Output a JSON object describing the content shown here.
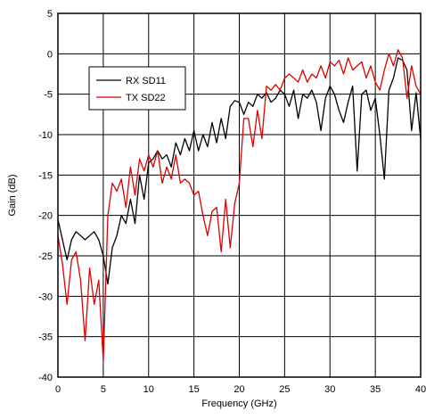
{
  "chart_data": {
    "type": "line",
    "xlabel": "Frequency (GHz)",
    "ylabel": "Gain (dB)",
    "xlim": [
      0,
      40
    ],
    "ylim": [
      -40,
      5
    ],
    "xticks": [
      0,
      5,
      10,
      15,
      20,
      25,
      30,
      35,
      40
    ],
    "yticks": [
      5,
      0,
      -5,
      -10,
      -15,
      -20,
      -25,
      -30,
      -35,
      -40
    ],
    "grid": true,
    "legend_position": "upper-left",
    "series": [
      {
        "name": "RX SD11",
        "color": "#000000",
        "x": [
          0,
          0.5,
          1,
          1.5,
          2,
          2.5,
          3,
          3.5,
          4,
          4.5,
          5,
          5.5,
          6,
          6.5,
          7,
          7.5,
          8,
          8.5,
          9,
          9.5,
          10,
          10.5,
          11,
          11.5,
          12,
          12.5,
          13,
          13.5,
          14,
          14.5,
          15,
          15.5,
          16,
          16.5,
          17,
          17.5,
          18,
          18.5,
          19,
          19.5,
          20,
          20.5,
          21,
          21.5,
          22,
          22.5,
          23,
          23.5,
          24,
          24.5,
          25,
          25.5,
          26,
          26.5,
          27,
          27.5,
          28,
          28.5,
          29,
          29.5,
          30,
          30.5,
          31,
          31.5,
          32,
          32.5,
          33,
          33.5,
          34,
          34.5,
          35,
          35.5,
          36,
          36.5,
          37,
          37.5,
          38,
          38.5,
          39,
          39.5,
          40
        ],
        "y": [
          -20.5,
          -23,
          -25.5,
          -23,
          -22,
          -22.5,
          -23,
          -22.5,
          -22,
          -23,
          -25,
          -28.5,
          -24,
          -22.5,
          -20,
          -21,
          -18,
          -21,
          -15,
          -18,
          -13.5,
          -13,
          -12,
          -13,
          -12.5,
          -14,
          -11,
          -12.5,
          -10.5,
          -12,
          -9.5,
          -12,
          -10,
          -11.5,
          -8.5,
          -11,
          -8,
          -10.5,
          -6.5,
          -5.8,
          -6,
          -7.5,
          -6,
          -6.5,
          -5,
          -5.5,
          -4.8,
          -6,
          -5.5,
          -4.5,
          -5,
          -6.5,
          -4.5,
          -8,
          -5,
          -5.5,
          -4.5,
          -6,
          -9.5,
          -5.5,
          -4,
          -5,
          -7,
          -8.5,
          -6,
          -4,
          -14.5,
          -5,
          -4.5,
          -7,
          -5.5,
          -10,
          -15.5,
          -4.5,
          -3,
          -0.5,
          -0.8,
          -2,
          -9.5,
          -4.8,
          -10.5
        ]
      },
      {
        "name": "TX SD22",
        "color": "#e00000",
        "x": [
          0,
          0.5,
          1,
          1.5,
          2,
          2.5,
          3,
          3.5,
          4,
          4.5,
          5,
          5.5,
          6,
          6.5,
          7,
          7.5,
          8,
          8.5,
          9,
          9.5,
          10,
          10.5,
          11,
          11.5,
          12,
          12.5,
          13,
          13.5,
          14,
          14.5,
          15,
          15.5,
          16,
          16.5,
          17,
          17.5,
          18,
          18.5,
          19,
          19.5,
          20,
          20.5,
          21,
          21.5,
          22,
          22.5,
          23,
          23.5,
          24,
          24.5,
          25,
          25.5,
          26,
          26.5,
          27,
          27.5,
          28,
          28.5,
          29,
          29.5,
          30,
          30.5,
          31,
          31.5,
          32,
          32.5,
          33,
          33.5,
          34,
          34.5,
          35,
          35.5,
          36,
          36.5,
          37,
          37.5,
          38,
          38.5,
          39,
          39.5,
          40
        ],
        "y": [
          -22.5,
          -26,
          -31,
          -25.5,
          -24.5,
          -28,
          -35.5,
          -26.5,
          -31,
          -28,
          -38,
          -20,
          -16,
          -17,
          -15.5,
          -19,
          -14,
          -17.5,
          -13,
          -14.5,
          -12.5,
          -14,
          -12,
          -16,
          -14,
          -15.5,
          -12.5,
          -16,
          -15.5,
          -16,
          -17.5,
          -17,
          -20,
          -22.5,
          -19.5,
          -19,
          -24.5,
          -18,
          -24,
          -18.5,
          -16,
          -8,
          -8,
          -11.5,
          -7,
          -10.5,
          -4,
          -4.5,
          -3.8,
          -4.5,
          -3,
          -2.5,
          -3,
          -3.5,
          -2,
          -3.5,
          -2.5,
          -3,
          -1.5,
          -3,
          -1,
          -1.5,
          -0.8,
          -2.5,
          -0.5,
          -2,
          -1.5,
          -1,
          -3,
          -1.5,
          -3.5,
          -4.5,
          -2,
          0,
          -1.5,
          0.5,
          -0.5,
          -5.5,
          -1.5,
          -4,
          -5
        ]
      }
    ]
  }
}
